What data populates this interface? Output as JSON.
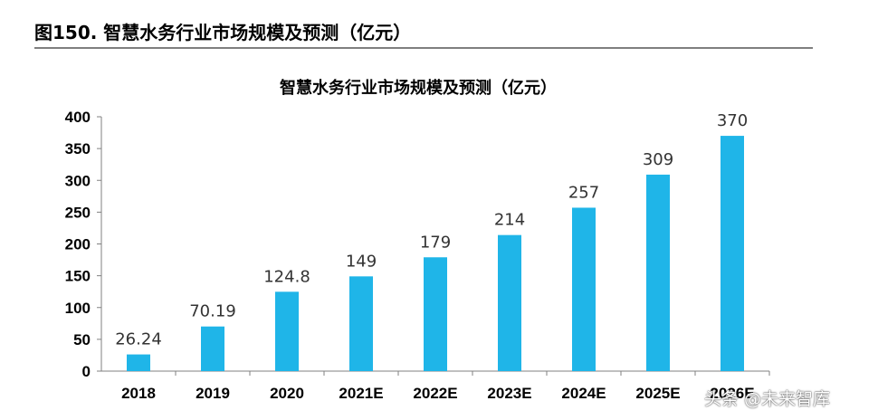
{
  "header": {
    "figure_title": "图150. 智慧水务行业市场规模及预测（亿元）"
  },
  "watermark": "头条 @未来智库",
  "chart_data": {
    "type": "bar",
    "title": "智慧水务行业市场规模及预测（亿元）",
    "categories": [
      "2018",
      "2019",
      "2020",
      "2021E",
      "2022E",
      "2023E",
      "2024E",
      "2025E",
      "2026E"
    ],
    "values": [
      26.24,
      70.19,
      124.8,
      149,
      179,
      214,
      257,
      309,
      370
    ],
    "value_labels": [
      "26.24",
      "70.19",
      "124.8",
      "149",
      "179",
      "214",
      "257",
      "309",
      "370"
    ],
    "yticks": [
      "0",
      "50",
      "100",
      "150",
      "200",
      "250",
      "300",
      "350",
      "400"
    ],
    "ylim": [
      0,
      400
    ],
    "xlabel": "",
    "ylabel": "",
    "bar_color": "#1fb5e8",
    "grid": false,
    "legend": "none"
  }
}
